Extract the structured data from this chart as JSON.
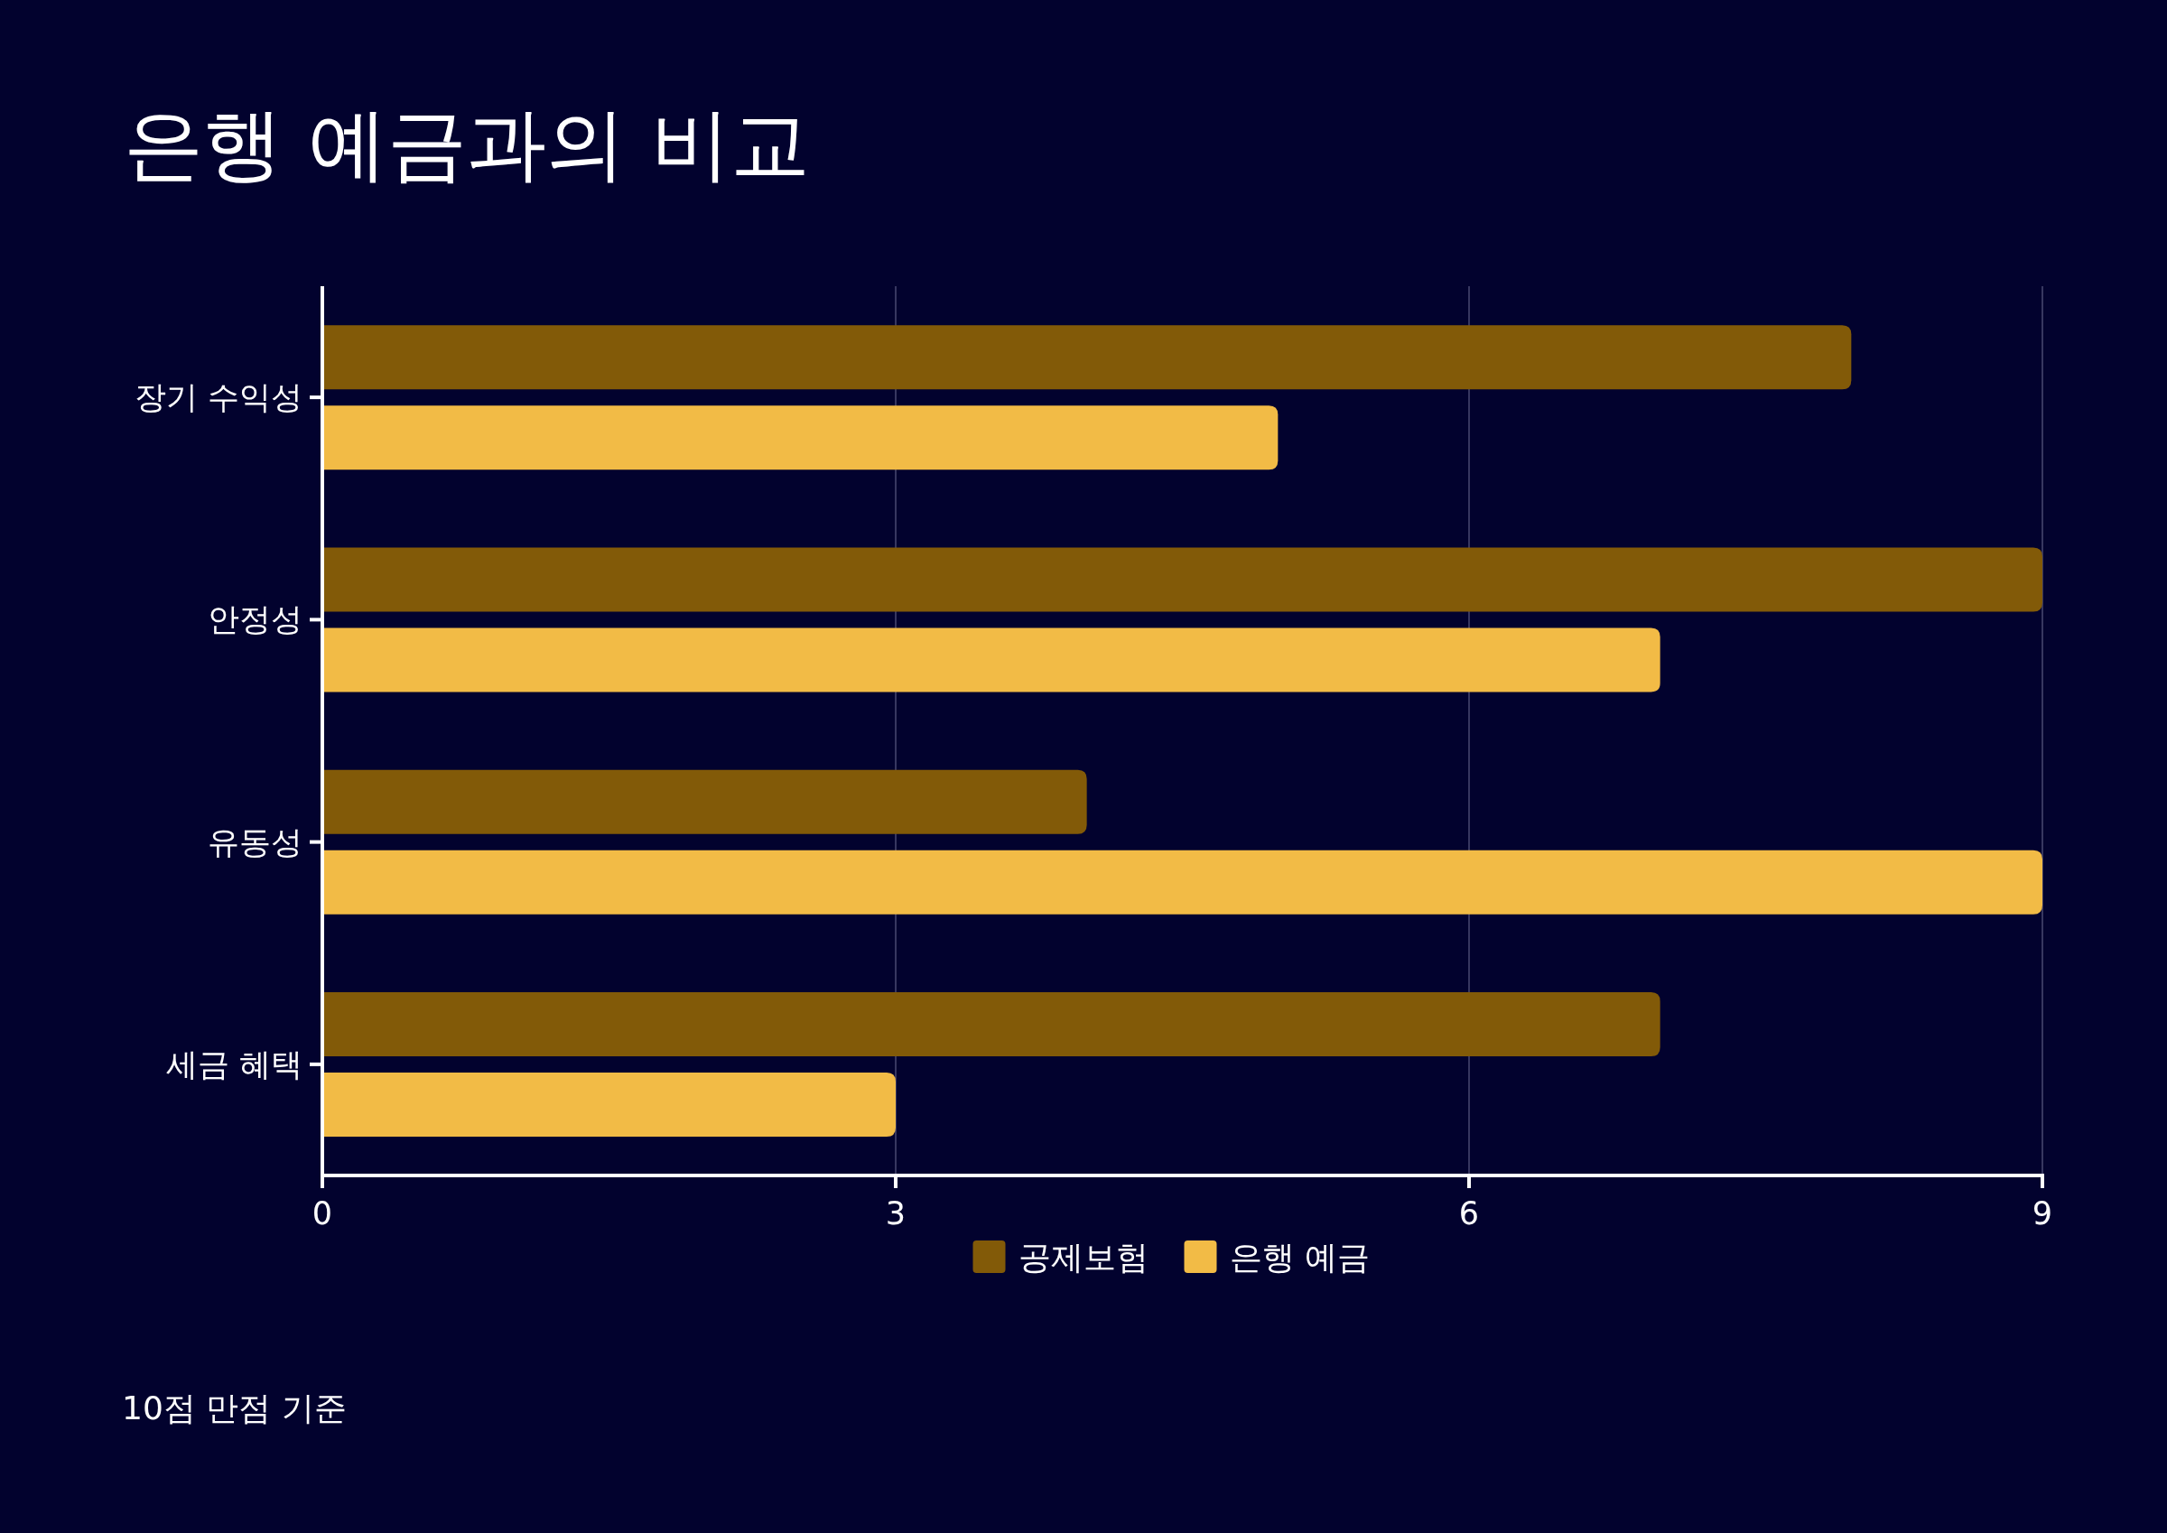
{
  "chart_data": {
    "type": "bar",
    "orientation": "horizontal",
    "title": "은행 예금과의 비교",
    "categories": [
      "장기 수익성",
      "안정성",
      "유동성",
      "세금 혜택"
    ],
    "series": [
      {
        "name": "공제보험",
        "color": "#825a08",
        "values": [
          8,
          9,
          4,
          7
        ]
      },
      {
        "name": "은행 예금",
        "color": "#f2bb46",
        "values": [
          5,
          7,
          9,
          3
        ]
      }
    ],
    "xlim": [
      0,
      9
    ],
    "xticks": [
      0,
      3,
      6,
      9
    ],
    "grid": "x",
    "legend": "bottom",
    "annotations": [
      "10점 만점 기준"
    ]
  }
}
